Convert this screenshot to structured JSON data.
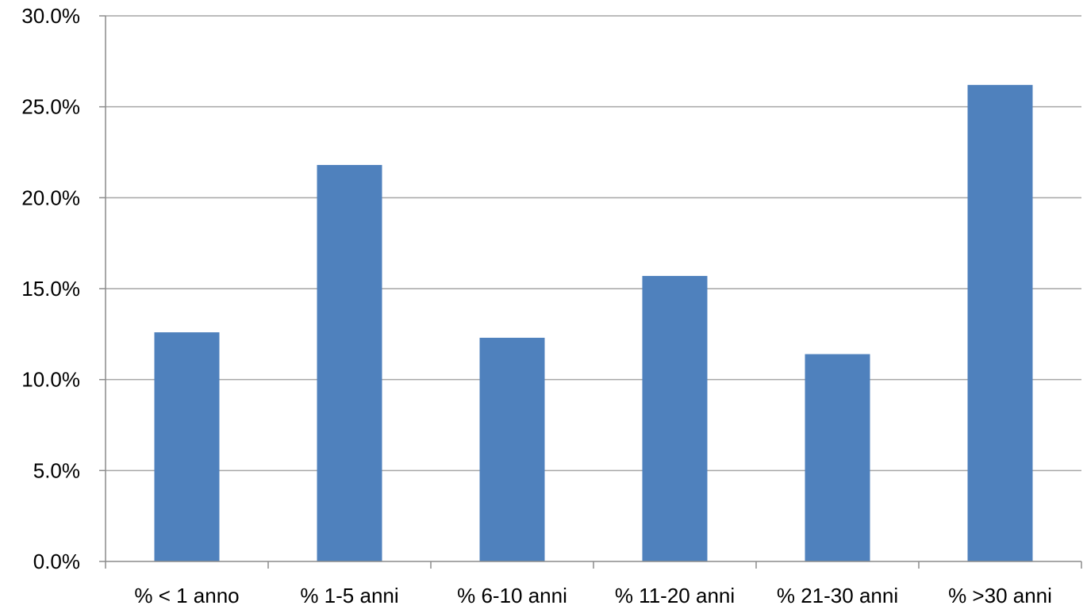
{
  "chart_data": {
    "type": "bar",
    "title": "",
    "xlabel": "",
    "ylabel": "",
    "categories": [
      "% < 1 anno",
      "% 1-5 anni",
      "% 6-10 anni",
      "% 11-20 anni",
      "% 21-30 anni",
      "% >30 anni"
    ],
    "values": [
      12.6,
      21.8,
      12.3,
      15.7,
      11.4,
      26.2
    ],
    "y_ticks": [
      "0.0%",
      "5.0%",
      "10.0%",
      "15.0%",
      "20.0%",
      "25.0%",
      "30.0%"
    ],
    "ylim": [
      0,
      30
    ],
    "y_unit": "%",
    "grid": true,
    "legend": "none",
    "bar_color": "#4f81bd"
  }
}
